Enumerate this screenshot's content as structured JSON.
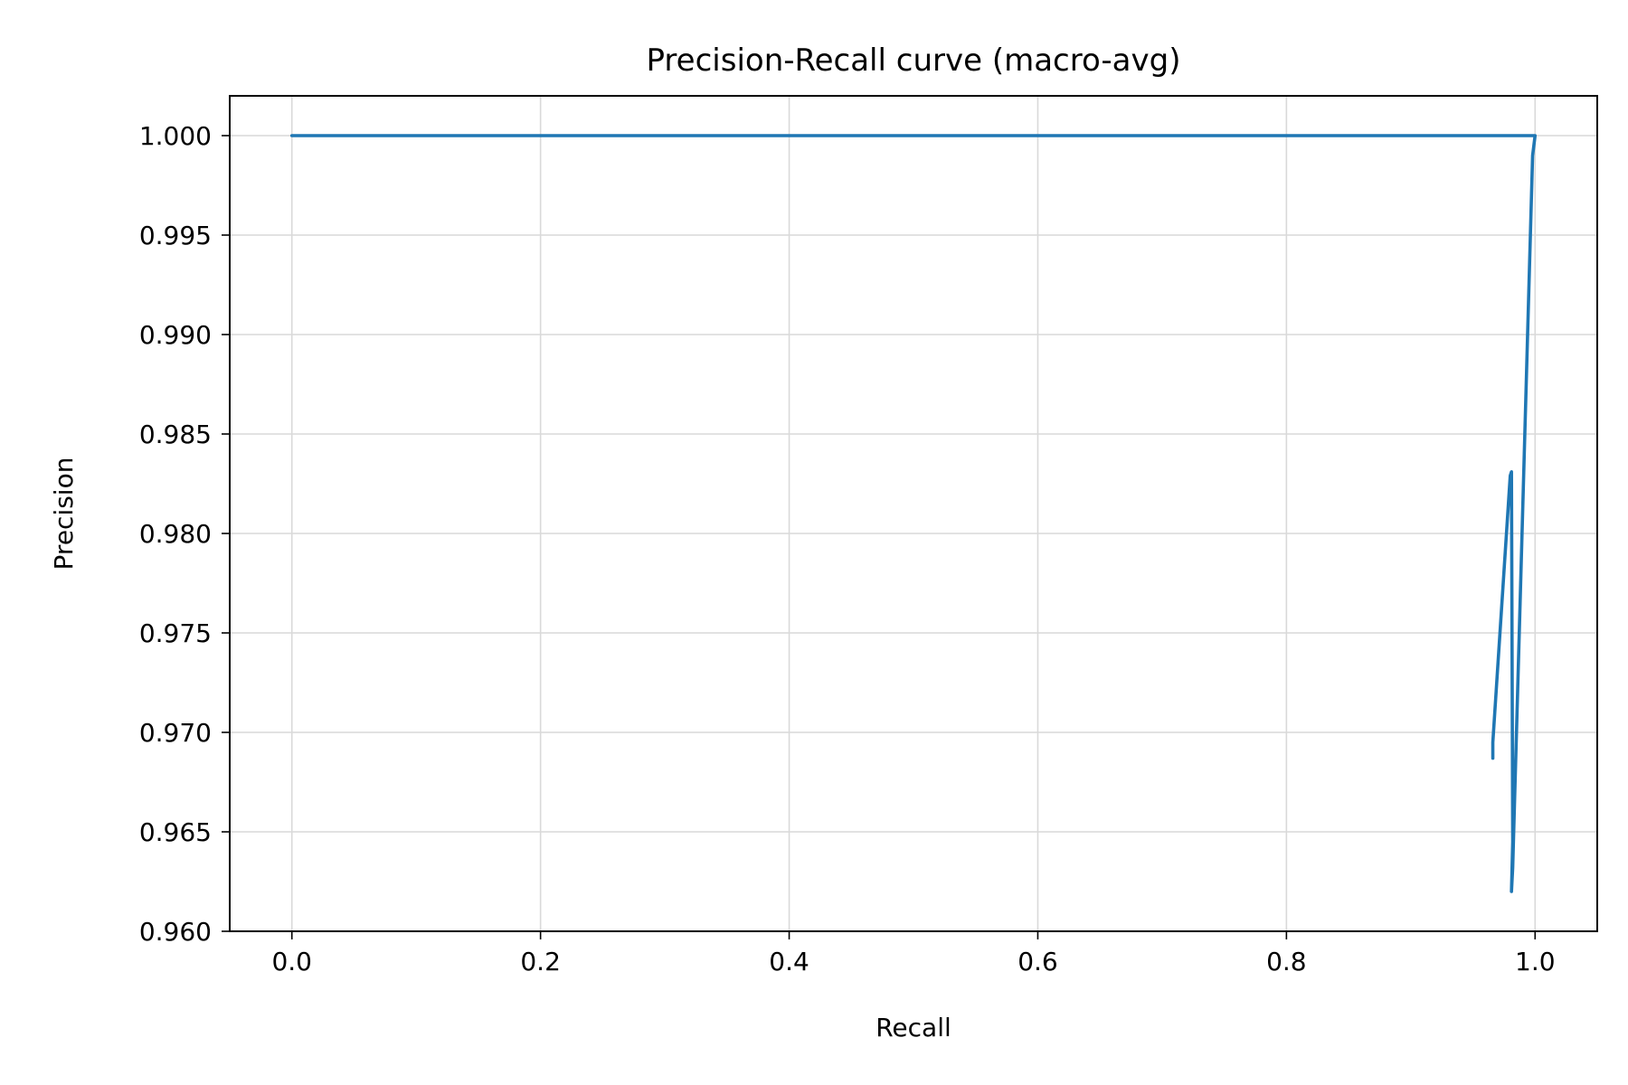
{
  "chart_data": {
    "type": "line",
    "title": "Precision-Recall curve (macro-avg)",
    "xlabel": "Recall",
    "ylabel": "Precision",
    "xlim": [
      -0.05,
      1.05
    ],
    "ylim": [
      0.96,
      1.002
    ],
    "xticks": [
      0.0,
      0.2,
      0.4,
      0.6,
      0.8,
      1.0
    ],
    "xtick_labels": [
      "0.0",
      "0.2",
      "0.4",
      "0.6",
      "0.8",
      "1.0"
    ],
    "yticks": [
      0.96,
      0.965,
      0.97,
      0.975,
      0.98,
      0.985,
      0.99,
      0.995,
      1.0
    ],
    "ytick_labels": [
      "0.960",
      "0.965",
      "0.970",
      "0.975",
      "0.980",
      "0.985",
      "0.990",
      "0.995",
      "1.000"
    ],
    "grid": true,
    "series": [
      {
        "color": "#1f77b4",
        "x": [
          0.0,
          1.0,
          0.998,
          0.982,
          0.981,
          0.982,
          0.981,
          0.98,
          0.966,
          0.966
        ],
        "y": [
          1.0,
          1.0,
          0.999,
          0.9632,
          0.962,
          0.9645,
          0.9831,
          0.9829,
          0.9695,
          0.9687
        ]
      }
    ]
  }
}
